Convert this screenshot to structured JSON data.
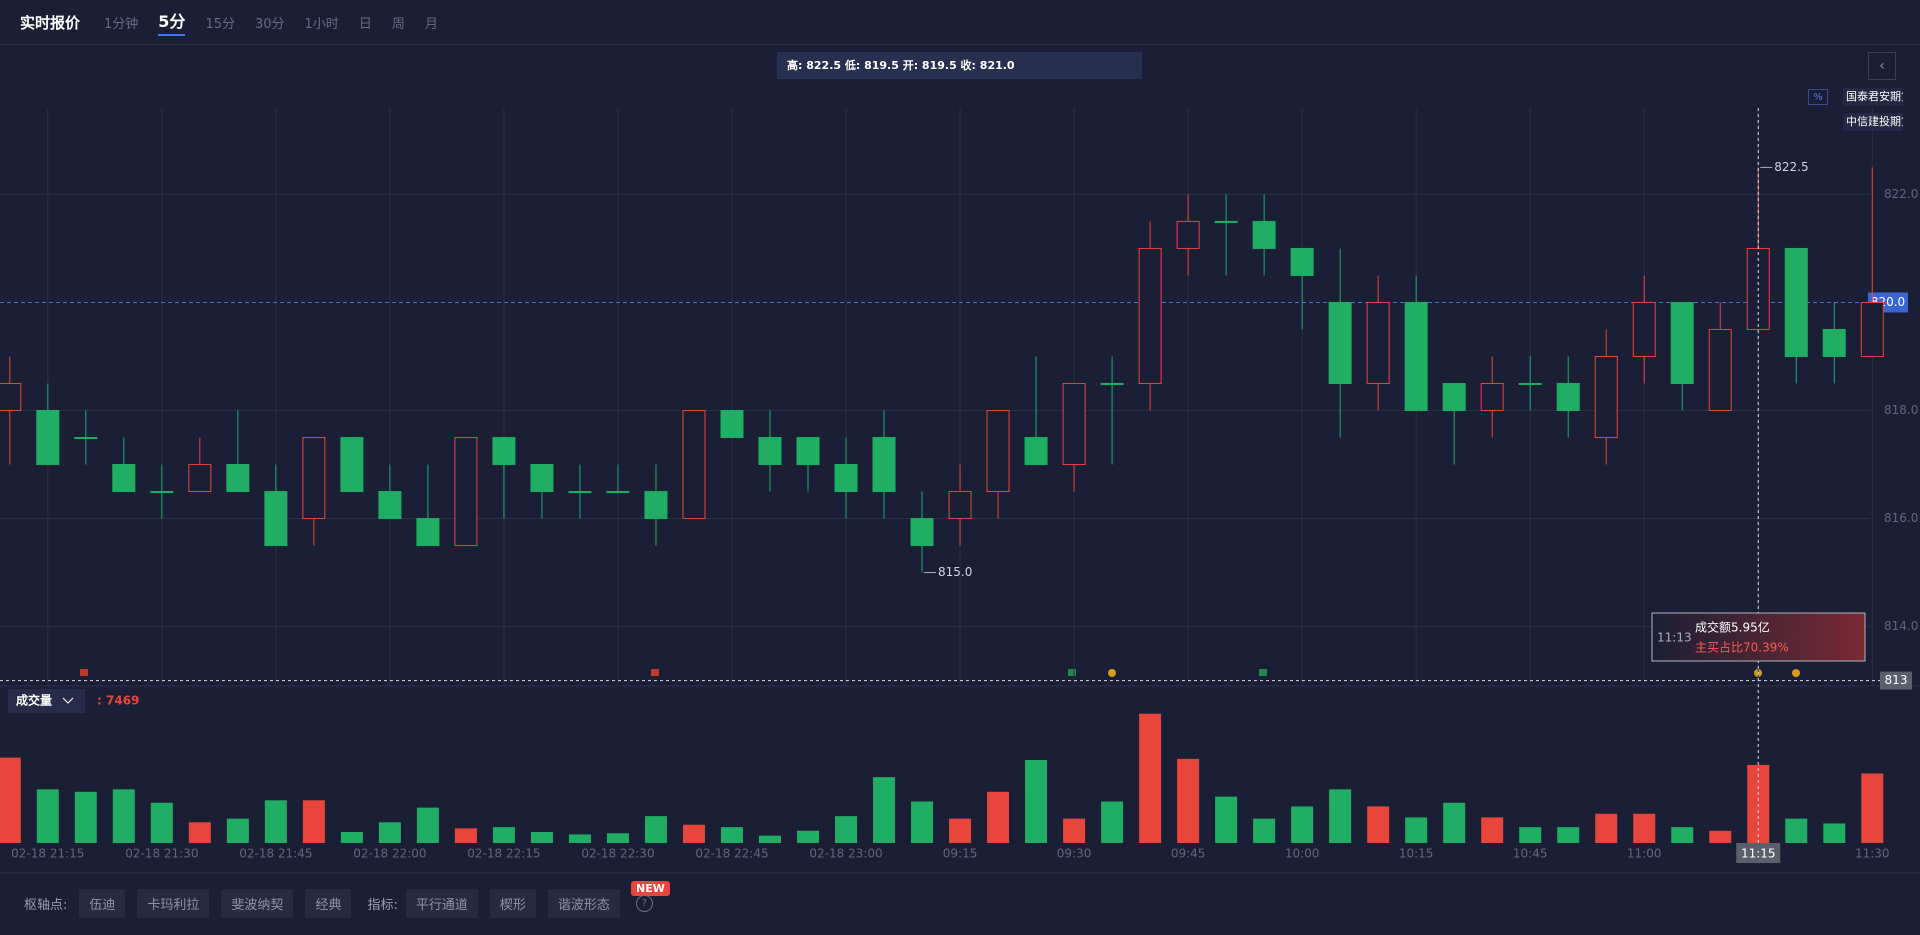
{
  "toolbar": {
    "title": "实时报价",
    "intervals": [
      "1分钟",
      "5分",
      "15分",
      "30分",
      "1小时",
      "日",
      "周",
      "月"
    ],
    "active_interval": 1
  },
  "info_bar": "高: 822.5 低: 819.5 开: 819.5 收: 821.0",
  "brokers": [
    "国泰君安期货",
    "中信建投期货"
  ],
  "chart_data": {
    "type": "candlestick",
    "categories": [
      null,
      "02-18 21:15",
      null,
      null,
      "02-18 21:30",
      null,
      null,
      "02-18 21:45",
      null,
      null,
      "02-18 22:00",
      null,
      null,
      "02-18 22:15",
      null,
      null,
      "02-18 22:30",
      null,
      null,
      "02-18 22:45",
      null,
      null,
      "02-18 23:00",
      null,
      null,
      "09:15",
      null,
      null,
      "09:30",
      null,
      null,
      "09:45",
      null,
      null,
      "10:00",
      null,
      null,
      "10:15",
      null,
      null,
      "10:45",
      null,
      null,
      "11:00",
      null,
      null,
      "11:15",
      null,
      null,
      "11:30"
    ],
    "open": [
      818,
      818,
      817.5,
      817,
      816.5,
      816.5,
      817,
      816.5,
      816,
      817.5,
      816.5,
      816,
      815.5,
      817.5,
      817,
      816.5,
      816.5,
      816.5,
      816,
      818,
      817.5,
      817.5,
      817,
      817.5,
      816,
      816,
      816.5,
      817.5,
      817,
      818.5,
      818.5,
      821,
      821.5,
      821.5,
      821,
      820,
      818.5,
      820,
      818.5,
      818,
      818.5,
      818.5,
      817.5,
      819,
      820,
      818,
      819.5,
      821,
      819.5,
      819
    ],
    "high": [
      819,
      818.5,
      818,
      817.5,
      817,
      817.5,
      818,
      817,
      817.5,
      817.5,
      817,
      817,
      817.5,
      817.5,
      817,
      817,
      817,
      817,
      818,
      818,
      818,
      817.5,
      817.5,
      818,
      816.5,
      817,
      818,
      819,
      818.5,
      819,
      821.5,
      822,
      822,
      822,
      821,
      821,
      820.5,
      820.5,
      818.5,
      819,
      819,
      819,
      819.5,
      820.5,
      820,
      820,
      822.5,
      821,
      820,
      822.5
    ],
    "low": [
      817,
      817,
      817,
      816.5,
      816,
      816.5,
      816.5,
      815.5,
      815.5,
      816.5,
      816,
      815.5,
      815.5,
      816,
      816,
      816,
      816.5,
      815.5,
      816,
      817.5,
      816.5,
      816.5,
      816,
      816,
      815,
      815.5,
      816,
      817,
      816.5,
      817,
      818,
      820.5,
      820.5,
      820.5,
      819.5,
      817.5,
      818,
      818,
      817,
      817.5,
      818,
      817.5,
      817,
      818.5,
      818,
      818,
      819.5,
      818.5,
      818.5,
      819
    ],
    "close": [
      818.5,
      817,
      817.5,
      816.5,
      816.5,
      817,
      816.5,
      815.5,
      817.5,
      816.5,
      816,
      815.5,
      817.5,
      817,
      816.5,
      816.5,
      816.5,
      816,
      818,
      817.5,
      817,
      817,
      816.5,
      816.5,
      815.5,
      816.5,
      818,
      817,
      818.5,
      818.5,
      821,
      821.5,
      821.5,
      821,
      820.5,
      818.5,
      820,
      818,
      818,
      818.5,
      818.5,
      818,
      819,
      820,
      818.5,
      819.5,
      821,
      819,
      819,
      820
    ],
    "volume": [
      8170,
      5135,
      4900,
      5135,
      3850,
      1980,
      2330,
      4085,
      4085,
      1050,
      1980,
      3385,
      1400,
      1520,
      1050,
      820,
      930,
      2570,
      1750,
      1520,
      700,
      1170,
      2570,
      6300,
      3970,
      2330,
      4900,
      7940,
      2330,
      3970,
      12370,
      8050,
      4435,
      2330,
      3500,
      5135,
      3500,
      2450,
      3850,
      2450,
      1520,
      1520,
      2800,
      2800,
      1520,
      1170,
      7469,
      2330,
      1870,
      6650
    ],
    "up_color": "#e8453c",
    "down_color": "#1fae63",
    "ylim": [
      812.9,
      823.6
    ],
    "yticks": [
      {
        "value": 814,
        "label": "814.0"
      },
      {
        "value": 816,
        "label": "816.0"
      },
      {
        "value": 818,
        "label": "818.0"
      },
      {
        "value": 822,
        "label": "822.0"
      }
    ],
    "volume_ylim": [
      0,
      13300
    ],
    "grid": true,
    "current_price": {
      "value": 820,
      "label": "820.0"
    },
    "max_label": {
      "value": 822.5,
      "label": "822.5"
    },
    "min_label": {
      "value": 815,
      "label": "815.0"
    },
    "crosshair": {
      "index": 46,
      "price": 813
    },
    "tooltip": {
      "time": "11:13",
      "amount": "成交额5.95亿",
      "buy_ratio": "主买占比70.39%"
    },
    "volume_label": "成交量",
    "volume_readout_sep": ":"
  },
  "bottom_bar": {
    "pivot_label": "枢轴点:",
    "pivots": [
      "伍迪",
      "卡玛利拉",
      "斐波纳契",
      "经典"
    ],
    "indicator_label": "指标:",
    "indicators": [
      "平行通道",
      "楔形",
      "谐波形态"
    ],
    "badge": "NEW",
    "help": "?"
  }
}
